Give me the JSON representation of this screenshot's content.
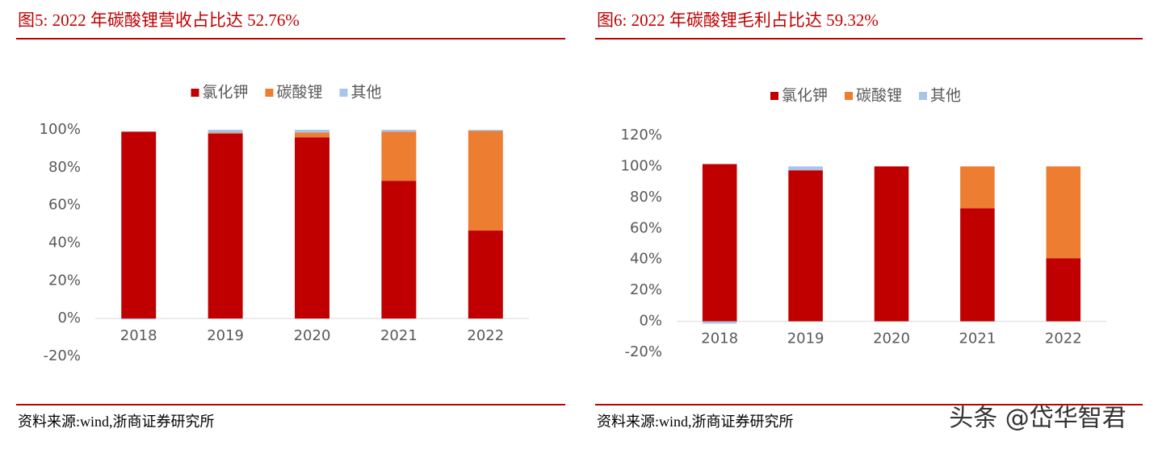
{
  "chart_data": [
    {
      "type": "stacked_bar",
      "title": "图5:   2022 年碳酸锂营收占比达 52.76%",
      "source": "资料来源:wind,浙商证券研究所",
      "categories": [
        "2018",
        "2019",
        "2020",
        "2021",
        "2022"
      ],
      "series": [
        {
          "name": "氯化钾",
          "color": "#c00000",
          "values": [
            99,
            98,
            96,
            73,
            46.6
          ]
        },
        {
          "name": "碳酸锂",
          "color": "#ed7d31",
          "values": [
            0,
            0.5,
            2.5,
            26,
            52.76
          ]
        },
        {
          "name": "其他",
          "color": "#a9c4eb",
          "values": [
            -0.5,
            1.5,
            1.5,
            1,
            0.6
          ]
        }
      ],
      "ylim": [
        -20,
        100
      ],
      "yticks": [
        {
          "value": -20,
          "label": "-20%"
        },
        {
          "value": 0,
          "label": "0%"
        },
        {
          "value": 20,
          "label": "20%"
        },
        {
          "value": 40,
          "label": "40%"
        },
        {
          "value": 60,
          "label": "60%"
        },
        {
          "value": 80,
          "label": "80%"
        },
        {
          "value": 100,
          "label": "100%"
        }
      ],
      "grid": false,
      "legend": "top"
    },
    {
      "type": "stacked_bar",
      "title": "图6:   2022 年碳酸锂毛利占比达 59.32%",
      "source": "资料来源:wind,浙商证券研究所",
      "categories": [
        "2018",
        "2019",
        "2020",
        "2021",
        "2022"
      ],
      "series": [
        {
          "name": "氯化钾",
          "color": "#c00000",
          "values": [
            101.5,
            97.5,
            100,
            73,
            40.68
          ]
        },
        {
          "name": "碳酸锂",
          "color": "#ed7d31",
          "values": [
            0,
            0,
            0,
            27,
            59.32
          ]
        },
        {
          "name": "其他",
          "color": "#a9c4eb",
          "values": [
            -1.5,
            2.5,
            0,
            0,
            0
          ]
        }
      ],
      "ylim": [
        -20,
        120
      ],
      "yticks": [
        {
          "value": -20,
          "label": "-20%"
        },
        {
          "value": 0,
          "label": "0%"
        },
        {
          "value": 20,
          "label": "20%"
        },
        {
          "value": 40,
          "label": "40%"
        },
        {
          "value": 60,
          "label": "60%"
        },
        {
          "value": 80,
          "label": "80%"
        },
        {
          "value": 100,
          "label": "100%"
        },
        {
          "value": 120,
          "label": "120%"
        }
      ],
      "grid": false,
      "legend": "top"
    }
  ],
  "watermark": "头条 @岱华智君"
}
